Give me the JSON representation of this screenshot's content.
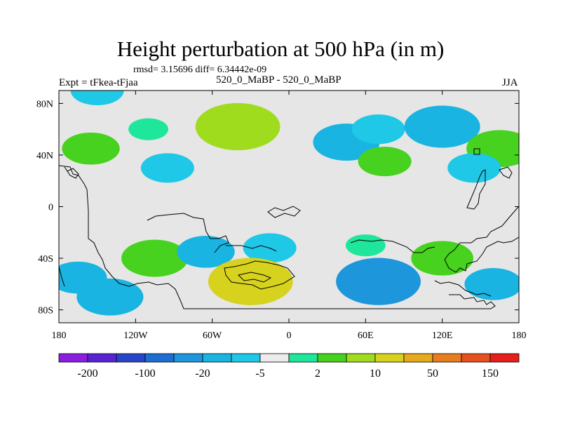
{
  "title": "Height perturbation at 500 hPa (in m)",
  "stats": "rmsd= 3.15696  diff= 6.34442e-09",
  "left_label": "Expt = tFkea-tFjaa",
  "center_label": "520_0_MaBP - 520_0_MaBP",
  "right_label": "JJA",
  "colors": {
    "land_fill": "#e6e6e6",
    "contour_levels": [
      "#8a1ee0",
      "#5a23d2",
      "#2845c8",
      "#1e6ed2",
      "#1e96dc",
      "#19b4e1",
      "#1ec8e6",
      "#ebebeb",
      "#1ee69b",
      "#46d21e",
      "#a0dc1e",
      "#d7d21e",
      "#e6aa1e",
      "#e67d1e",
      "#e6501e",
      "#e61e1e"
    ]
  },
  "chart_data": {
    "type": "heatmap",
    "title": "Height perturbation at 500 hPa (in m)",
    "units": "m",
    "x_ticks": [
      "180",
      "120W",
      "60W",
      "0",
      "60E",
      "120E",
      "180"
    ],
    "y_ticks": [
      "80N",
      "40N",
      "0",
      "40S",
      "80S"
    ],
    "colorbar_labels": [
      "-200",
      "-100",
      "-20",
      "-5",
      "2",
      "10",
      "50",
      "150"
    ],
    "colorbar_levels": 16,
    "xlim": [
      -180,
      180
    ],
    "ylim": [
      -90,
      90
    ],
    "anomalies": [
      {
        "lon": -155,
        "lat": 45,
        "value": 6
      },
      {
        "lon": -150,
        "lat": 90,
        "value": -5
      },
      {
        "lon": -95,
        "lat": 30,
        "value": -5
      },
      {
        "lon": -110,
        "lat": 60,
        "value": 2
      },
      {
        "lon": -40,
        "lat": 60,
        "value": 6
      },
      {
        "lon": -40,
        "lat": 62,
        "value": 12
      },
      {
        "lon": 45,
        "lat": 50,
        "value": -6
      },
      {
        "lon": 45,
        "lat": 50,
        "value": -8
      },
      {
        "lon": 70,
        "lat": 60,
        "value": -5
      },
      {
        "lon": 120,
        "lat": 60,
        "value": -8
      },
      {
        "lon": 120,
        "lat": 62,
        "value": -10
      },
      {
        "lon": 165,
        "lat": 45,
        "value": 8
      },
      {
        "lon": 145,
        "lat": 30,
        "value": -5
      },
      {
        "lon": 75,
        "lat": 35,
        "value": 5
      },
      {
        "lon": -105,
        "lat": -40,
        "value": 8
      },
      {
        "lon": -165,
        "lat": -55,
        "value": -6
      },
      {
        "lon": -140,
        "lat": -70,
        "value": -8
      },
      {
        "lon": -65,
        "lat": -35,
        "value": -6
      },
      {
        "lon": -15,
        "lat": -32,
        "value": -5
      },
      {
        "lon": -30,
        "lat": -60,
        "value": 10
      },
      {
        "lon": -30,
        "lat": -58,
        "value": 25
      },
      {
        "lon": 70,
        "lat": -58,
        "value": -12
      },
      {
        "lon": 60,
        "lat": -30,
        "value": 2
      },
      {
        "lon": 120,
        "lat": -40,
        "value": 7
      },
      {
        "lon": 160,
        "lat": -60,
        "value": -6
      }
    ]
  }
}
